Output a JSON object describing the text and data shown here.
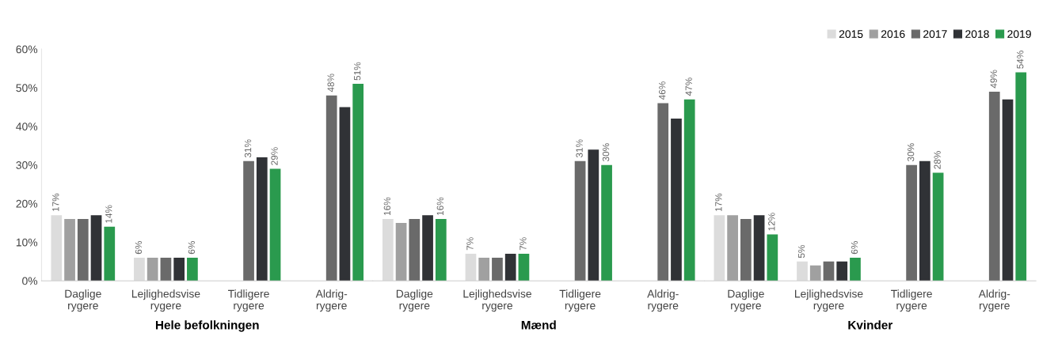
{
  "chart_data": [
    {
      "type": "bar",
      "xlabel": "Hele befolkningen",
      "categories": [
        "Daglige\nrygere",
        "Lejlighedsvise\nrygere",
        "Tidligere\nrygere",
        "Aldrig-\nrygere"
      ],
      "ylim": [
        0,
        60
      ],
      "yticks": [
        {
          "value": 0,
          "label": "0%"
        },
        {
          "value": 10,
          "label": "10%"
        },
        {
          "value": 20,
          "label": "20%"
        },
        {
          "value": 30,
          "label": "30%"
        },
        {
          "value": 40,
          "label": "40%"
        },
        {
          "value": 50,
          "label": "50%"
        },
        {
          "value": 60,
          "label": "60%"
        }
      ],
      "grid": false,
      "legend": false,
      "series": [
        {
          "color": "#dcdcdc",
          "values": [
            17,
            6,
            null,
            null
          ],
          "value_labels": [
            "17%",
            "6%",
            null,
            null
          ]
        },
        {
          "color": "#a0a0a0",
          "values": [
            16,
            6,
            null,
            null
          ],
          "value_labels": [
            null,
            null,
            null,
            null
          ]
        },
        {
          "color": "#6a6a6a",
          "values": [
            16,
            6,
            31,
            48
          ],
          "value_labels": [
            null,
            null,
            "31%",
            "48%"
          ]
        },
        {
          "color": "#303236",
          "values": [
            17,
            6,
            32,
            45
          ],
          "value_labels": [
            null,
            null,
            null,
            null
          ]
        },
        {
          "color": "#2a9a4e",
          "values": [
            14,
            6,
            29,
            51
          ],
          "value_labels": [
            "14%",
            "6%",
            "29%",
            "51%"
          ]
        }
      ]
    },
    {
      "type": "bar",
      "xlabel": "Mænd",
      "categories": [
        "Daglige\nrygere",
        "Lejlighedsvise\nrygere",
        "Tidligere\nrygere",
        "Aldrig-\nrygere"
      ],
      "ylim": [
        0,
        60
      ],
      "tick_labels": "x",
      "grid": false,
      "legend": false,
      "series": [
        {
          "color": "#dcdcdc",
          "values": [
            16,
            7,
            null,
            null
          ],
          "value_labels": [
            "16%",
            "7%",
            null,
            null
          ]
        },
        {
          "color": "#a0a0a0",
          "values": [
            15,
            6,
            null,
            null
          ],
          "value_labels": [
            null,
            null,
            null,
            null
          ]
        },
        {
          "color": "#6a6a6a",
          "values": [
            16,
            6,
            31,
            46
          ],
          "value_labels": [
            null,
            null,
            "31%",
            "46%"
          ]
        },
        {
          "color": "#303236",
          "values": [
            17,
            7,
            34,
            42
          ],
          "value_labels": [
            null,
            null,
            null,
            null
          ]
        },
        {
          "color": "#2a9a4e",
          "values": [
            16,
            7,
            30,
            47
          ],
          "value_labels": [
            "16%",
            "7%",
            "30%",
            "47%"
          ]
        }
      ]
    },
    {
      "type": "bar",
      "xlabel": "Kvinder",
      "categories": [
        "Daglige\nrygere",
        "Lejlighedsvise\nrygere",
        "Tidligere\nrygere",
        "Aldrig-\nrygere"
      ],
      "ylim": [
        0,
        60
      ],
      "tick_labels": "x",
      "grid": false,
      "legend": "top right",
      "series": [
        {
          "name": "2015",
          "color": "#dcdcdc",
          "values": [
            17,
            5,
            null,
            null
          ],
          "value_labels": [
            "17%",
            "5%",
            null,
            null
          ]
        },
        {
          "name": "2016",
          "color": "#a0a0a0",
          "values": [
            17,
            4,
            null,
            null
          ],
          "value_labels": [
            null,
            null,
            null,
            null
          ]
        },
        {
          "name": "2017",
          "color": "#6a6a6a",
          "values": [
            16,
            5,
            30,
            49
          ],
          "value_labels": [
            null,
            null,
            "30%",
            "49%"
          ]
        },
        {
          "name": "2018",
          "color": "#303236",
          "values": [
            17,
            5,
            31,
            47
          ],
          "value_labels": [
            null,
            null,
            null,
            null
          ]
        },
        {
          "name": "2019",
          "color": "#2a9a4e",
          "values": [
            12,
            6,
            28,
            54
          ],
          "value_labels": [
            "12%",
            "6%",
            "28%",
            "54%"
          ]
        }
      ]
    }
  ]
}
